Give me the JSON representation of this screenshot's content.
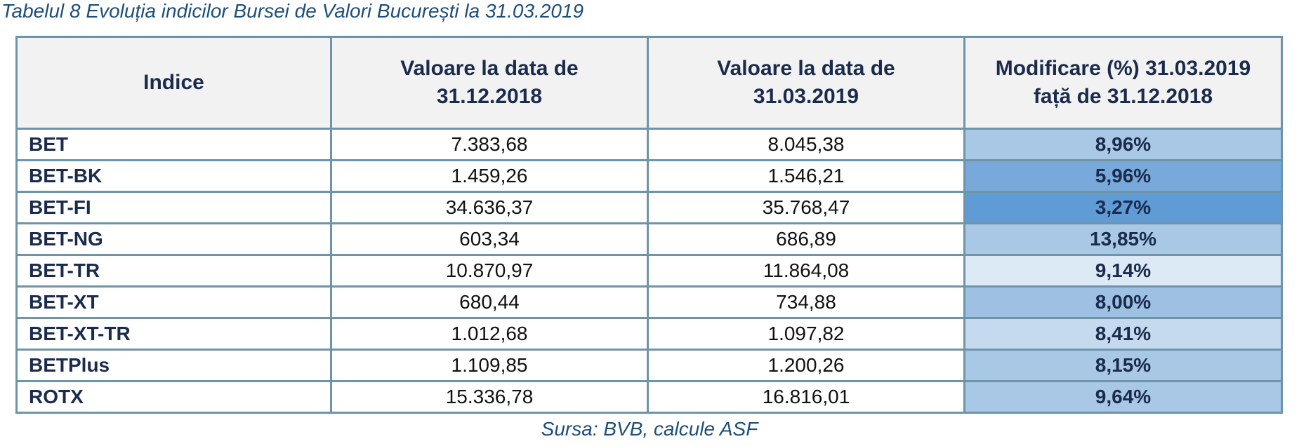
{
  "caption": {
    "label": "Tabelul 8",
    "text": "Evoluția indicilor Bursei de Valori București la 31.03.2019"
  },
  "table": {
    "headers": {
      "index": "Indice",
      "value_2018_line1": "Valoare la data de",
      "value_2018_line2": "31.12.2018",
      "value_2019_line1": "Valoare la data de",
      "value_2019_line2": "31.03.2019",
      "change_line1": "Modificare (%) 31.03.2019",
      "change_line2": "față de 31.12.2018"
    },
    "rows": [
      {
        "name": "BET",
        "v2018": "7.383,68",
        "v2019": "8.045,38",
        "change": "8,96%",
        "shade": "#a9c8e6"
      },
      {
        "name": "BET-BK",
        "v2018": "1.459,26",
        "v2019": "1.546,21",
        "change": "5,96%",
        "shade": "#79a9da"
      },
      {
        "name": "BET-FI",
        "v2018": "34.636,37",
        "v2019": "35.768,47",
        "change": "3,27%",
        "shade": "#5f9bd5"
      },
      {
        "name": "BET-NG",
        "v2018": "603,34",
        "v2019": "686,89",
        "change": "13,85%",
        "shade": "#a9c8e6"
      },
      {
        "name": "BET-TR",
        "v2018": "10.870,97",
        "v2019": "11.864,08",
        "change": "9,14%",
        "shade": "#ddeaf6"
      },
      {
        "name": "BET-XT",
        "v2018": "680,44",
        "v2019": "734,88",
        "change": "8,00%",
        "shade": "#9dc0e3"
      },
      {
        "name": "BET-XT-TR",
        "v2018": "1.012,68",
        "v2019": "1.097,82",
        "change": "8,41%",
        "shade": "#c5daee"
      },
      {
        "name": "BETPlus",
        "v2018": "1.109,85",
        "v2019": "1.200,26",
        "change": "8,15%",
        "shade": "#a9c8e6"
      },
      {
        "name": "ROTX",
        "v2018": "15.336,78",
        "v2019": "16.816,01",
        "change": "9,64%",
        "shade": "#a9c8e6"
      }
    ]
  },
  "source": "Sursa: BVB, calcule ASF"
}
